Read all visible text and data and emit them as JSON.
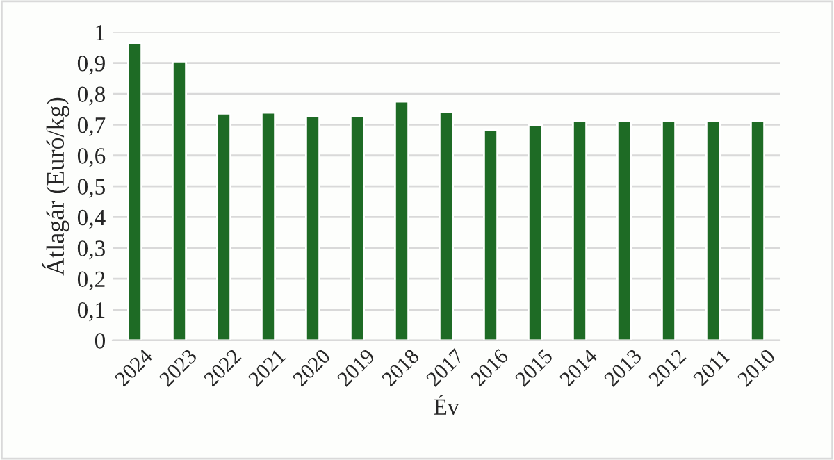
{
  "chart_data": {
    "type": "bar",
    "xlabel": "Év",
    "ylabel": "Átlagár (Euró/kg)",
    "categories": [
      "2024",
      "2023",
      "2022",
      "2021",
      "2020",
      "2019",
      "2018",
      "2017",
      "2016",
      "2015",
      "2014",
      "2013",
      "2012",
      "2011",
      "2010"
    ],
    "values": [
      0.965,
      0.905,
      0.736,
      0.739,
      0.729,
      0.729,
      0.775,
      0.742,
      0.684,
      0.698,
      0.712,
      0.712,
      0.712,
      0.712,
      0.712
    ],
    "color": "#1e6b25",
    "ylim": [
      0,
      1
    ],
    "yticks": [
      {
        "value": 0,
        "label": "0"
      },
      {
        "value": 0.1,
        "label": "0,1"
      },
      {
        "value": 0.2,
        "label": "0,2"
      },
      {
        "value": 0.3,
        "label": "0,3"
      },
      {
        "value": 0.4,
        "label": "0,4"
      },
      {
        "value": 0.5,
        "label": "0,5"
      },
      {
        "value": 0.6,
        "label": "0,6"
      },
      {
        "value": 0.7,
        "label": "0,7"
      },
      {
        "value": 0.8,
        "label": "0,8"
      },
      {
        "value": 0.9,
        "label": "0,9"
      },
      {
        "value": 1,
        "label": "1"
      }
    ],
    "grid": "y",
    "legend": false
  }
}
